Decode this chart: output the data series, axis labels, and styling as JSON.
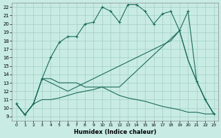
{
  "xlabel": "Humidex (Indice chaleur)",
  "xlim": [
    -0.5,
    23.5
  ],
  "ylim": [
    8.5,
    22.5
  ],
  "xticks": [
    0,
    1,
    2,
    3,
    4,
    5,
    6,
    7,
    8,
    9,
    10,
    11,
    12,
    13,
    14,
    15,
    16,
    17,
    18,
    19,
    20,
    21,
    22,
    23
  ],
  "yticks": [
    9,
    10,
    11,
    12,
    13,
    14,
    15,
    16,
    17,
    18,
    19,
    20,
    21,
    22
  ],
  "background_color": "#c8ebe4",
  "grid_color": "#a0cfc5",
  "line_color": "#1a6b5a",
  "line1_x": [
    0,
    1,
    2,
    3,
    4,
    5,
    6,
    7,
    8,
    9,
    10,
    11,
    12,
    13,
    14,
    15,
    16,
    17,
    18,
    19,
    20,
    21,
    22,
    23
  ],
  "line1_y": [
    10.5,
    9.2,
    10.5,
    13.5,
    16.0,
    17.8,
    18.5,
    18.5,
    20.0,
    20.2,
    22.0,
    21.5,
    20.2,
    22.3,
    22.3,
    21.5,
    20.0,
    21.2,
    21.5,
    19.2,
    21.5,
    13.2,
    11.0,
    9.3
  ],
  "line2_x": [
    0,
    1,
    2,
    3,
    4,
    5,
    6,
    7,
    8,
    9,
    10,
    11,
    12,
    19,
    20,
    21,
    22,
    23
  ],
  "line2_y": [
    10.5,
    9.2,
    10.5,
    13.5,
    13.5,
    13.0,
    13.0,
    13.0,
    12.5,
    12.5,
    12.5,
    12.5,
    12.5,
    19.2,
    15.7,
    13.2,
    11.0,
    9.3
  ],
  "line3_x": [
    0,
    1,
    2,
    3,
    4,
    5,
    6,
    7,
    8,
    9,
    10,
    11,
    12,
    13,
    14,
    15,
    16,
    17,
    18,
    19,
    20,
    21,
    22,
    23
  ],
  "line3_y": [
    10.5,
    9.2,
    10.5,
    13.5,
    13.0,
    12.5,
    12.0,
    12.5,
    13.0,
    13.5,
    14.0,
    14.5,
    15.0,
    15.5,
    16.0,
    16.5,
    17.0,
    17.5,
    18.0,
    19.2,
    15.7,
    13.2,
    11.0,
    9.3
  ],
  "line4_x": [
    0,
    1,
    2,
    3,
    4,
    5,
    6,
    7,
    8,
    9,
    10,
    11,
    12,
    13,
    14,
    15,
    16,
    17,
    18,
    19,
    20,
    21,
    22,
    23
  ],
  "line4_y": [
    10.5,
    9.2,
    10.5,
    11.0,
    11.0,
    11.2,
    11.5,
    11.8,
    12.0,
    12.2,
    12.5,
    12.0,
    11.5,
    11.2,
    11.0,
    10.8,
    10.5,
    10.2,
    10.0,
    9.8,
    9.5,
    9.5,
    9.3,
    9.3
  ]
}
